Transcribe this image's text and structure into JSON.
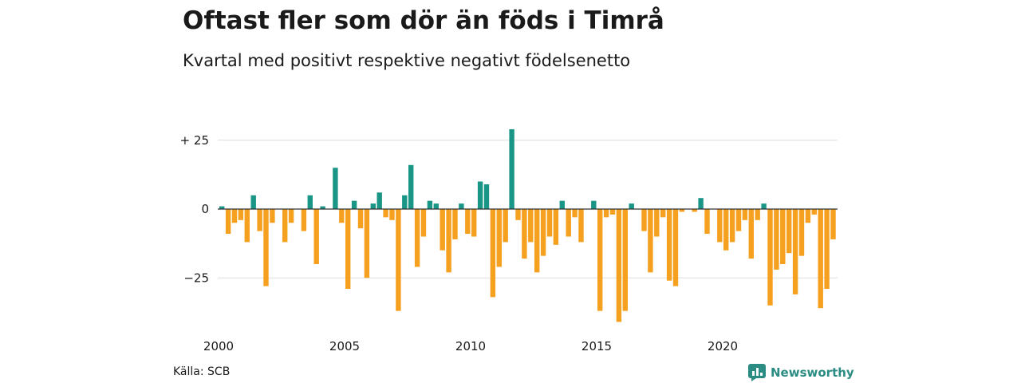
{
  "title": "Oftast fler som dör än föds i Timrå",
  "subtitle": "Kvartal med positivt respektive negativt födelsenetto",
  "source": "Källa: SCB",
  "brand": {
    "name": "Newsworthy",
    "icon": "newsworthy-logo-icon"
  },
  "colors": {
    "positive": "#1a9687",
    "negative": "#f5a01f",
    "grid": "#dddddd",
    "zero": "#333333"
  },
  "chart_data": {
    "type": "bar",
    "title": "Oftast fler som dör än föds i Timrå",
    "subtitle": "Kvartal med positivt respektive negativt födelsenetto",
    "x_start": "2000Q1",
    "x_step": "quarter",
    "x_ticks": [
      "2000",
      "2005",
      "2010",
      "2015",
      "2020"
    ],
    "y_ticks": [
      25,
      0,
      -25
    ],
    "y_tick_labels": [
      "+ 25",
      "0",
      "−25"
    ],
    "ylim": [
      -42,
      29
    ],
    "grid": true,
    "values": [
      1,
      -9,
      -5,
      -4,
      -12,
      5,
      -8,
      -28,
      -5,
      0,
      -12,
      -5,
      0,
      -8,
      5,
      -20,
      1,
      0,
      15,
      -5,
      -29,
      3,
      -7,
      -25,
      2,
      6,
      -3,
      -4,
      -37,
      5,
      16,
      -21,
      -10,
      3,
      2,
      -15,
      -23,
      -11,
      2,
      -9,
      -10,
      10,
      9,
      -32,
      -21,
      -12,
      29,
      -4,
      -18,
      -12,
      -23,
      -17,
      -10,
      -13,
      3,
      -10,
      -3,
      -12,
      0,
      3,
      -37,
      -3,
      -2,
      -41,
      -37,
      2,
      0,
      -8,
      -23,
      -10,
      -3,
      -26,
      -28,
      -1,
      0,
      -1,
      4,
      -9,
      0,
      -12,
      -15,
      -12,
      -8,
      -4,
      -18,
      -4,
      2,
      -35,
      -22,
      -20,
      -16,
      -31,
      -17,
      -5,
      -2,
      -36,
      -29,
      -11
    ]
  }
}
